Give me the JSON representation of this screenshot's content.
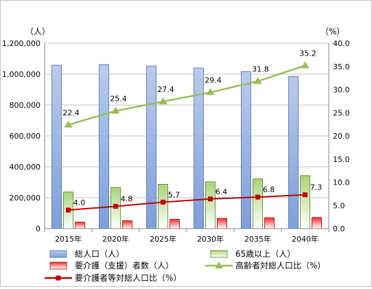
{
  "chart_data": {
    "type": "bar",
    "categories": [
      "2015年",
      "2020年",
      "2025年",
      "2030年",
      "2035年",
      "2040年"
    ],
    "y_left": {
      "unit_label": "（人）",
      "ylim": [
        0,
        1200000
      ],
      "ticks": [
        "0",
        "200,000",
        "400,000",
        "600,000",
        "800,000",
        "1,000,000",
        "1,200,000"
      ]
    },
    "y_right": {
      "unit_label": "（%）",
      "ylim": [
        0,
        40
      ],
      "ticks": [
        "0.0",
        "5.0",
        "10.0",
        "15.0",
        "20.0",
        "25.0",
        "30.0",
        "35.0",
        "40.0"
      ]
    },
    "grid": true,
    "legend_position": "bottom",
    "series": [
      {
        "name": "総人口（人）",
        "kind": "bar",
        "axis": "left",
        "color": "#9ab4e0",
        "values": [
          1058000,
          1062000,
          1053000,
          1040000,
          1017000,
          985000
        ]
      },
      {
        "name": "65歳以上（人）",
        "kind": "bar",
        "axis": "left",
        "color": "#8fc15a",
        "values": [
          237000,
          267000,
          287000,
          303000,
          322000,
          343000
        ]
      },
      {
        "name": "要介護（支援）者数（人）",
        "kind": "bar",
        "axis": "left",
        "color": "#e02020",
        "values": [
          42000,
          51000,
          60000,
          66000,
          70000,
          72000
        ]
      },
      {
        "name": "高齢者対総人口比（%）",
        "kind": "line",
        "axis": "right",
        "color": "#9bbb59",
        "marker": "triangle",
        "values": [
          22.4,
          25.4,
          27.4,
          29.4,
          31.8,
          35.2
        ],
        "labels": [
          "22.4",
          "25.4",
          "27.4",
          "29.4",
          "31.8",
          "35.2"
        ]
      },
      {
        "name": "要介護者等対総人口比（%）",
        "kind": "line",
        "axis": "right",
        "color": "#c00000",
        "marker": "square",
        "values": [
          4.0,
          4.8,
          5.7,
          6.4,
          6.8,
          7.3
        ],
        "labels": [
          "4.0",
          "4.8",
          "5.7",
          "6.4",
          "6.8",
          "7.3"
        ]
      }
    ]
  }
}
